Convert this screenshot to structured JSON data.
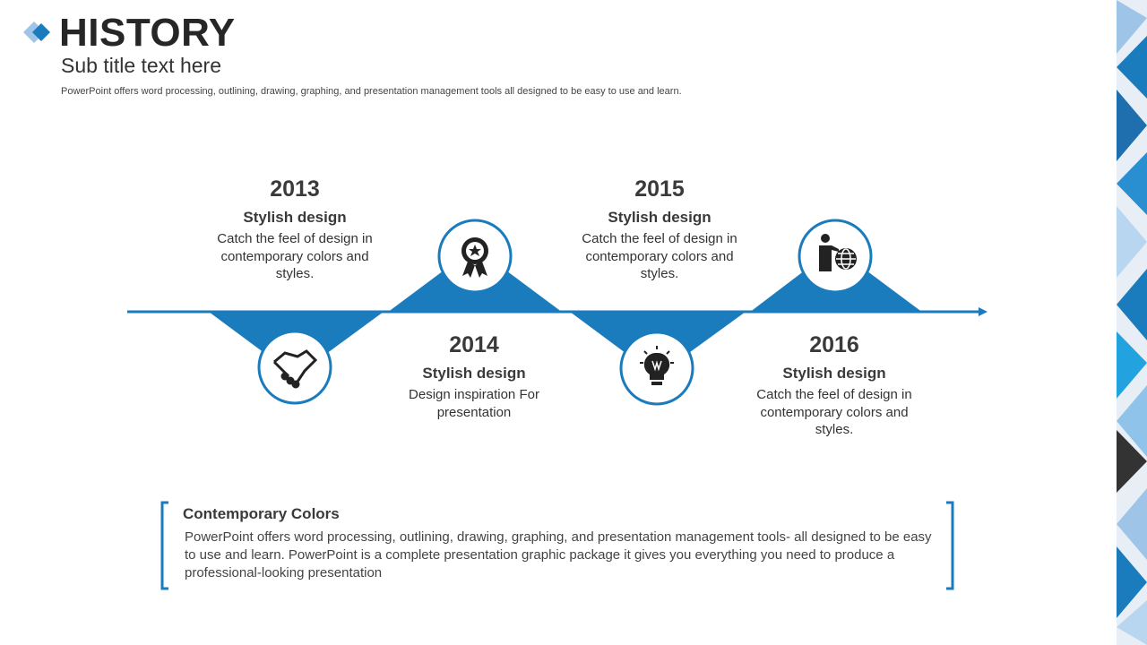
{
  "header": {
    "title": "HISTORY",
    "subtitle": "Sub title text here",
    "description": "PowerPoint offers word processing, outlining, drawing, graphing, and presentation management tools all designed to be easy to use and learn."
  },
  "timeline": [
    {
      "year": "2013",
      "heading": "Stylish design",
      "text": "Catch the feel of design in contemporary colors and styles."
    },
    {
      "year": "2014",
      "heading": "Stylish design",
      "text": "Design inspiration For presentation"
    },
    {
      "year": "2015",
      "heading": "Stylish design",
      "text": "Catch the feel of design in contemporary colors and styles."
    },
    {
      "year": "2016",
      "heading": "Stylish design",
      "text": "Catch the feel of design in contemporary colors and styles."
    }
  ],
  "note": {
    "heading": "Contemporary Colors",
    "text": "PowerPoint offers word processing, outlining, drawing, graphing, and presentation management tools- all designed to be easy to use and learn. PowerPoint is a complete presentation graphic package it gives you everything you need to produce a professional-looking presentation"
  }
}
